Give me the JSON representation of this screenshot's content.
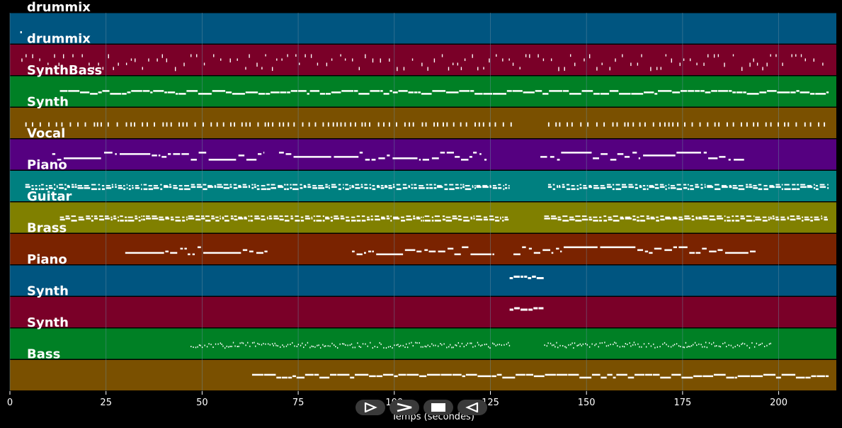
{
  "colors": {
    "background": "#000000",
    "grid": "#6a8ea3",
    "note": "#ffffff",
    "track_palette": [
      "#005580",
      "#7a0028",
      "#008025",
      "#7a5000",
      "#550080",
      "#008080",
      "#808000",
      "#7a2300"
    ]
  },
  "axis": {
    "xlabel": "Temps (secondes)",
    "xlim": [
      0,
      215
    ],
    "ticks": [
      0,
      25,
      50,
      75,
      100,
      125,
      150,
      175,
      200
    ]
  },
  "tracks": [
    {
      "name": "drummix",
      "color": "#005580",
      "style": "dot",
      "segments": []
    },
    {
      "name": "drummix",
      "color": "#7a0028",
      "style": "drum",
      "segments": [
        [
          3,
          213
        ]
      ]
    },
    {
      "name": "SynthBass",
      "color": "#008025",
      "style": "line",
      "segments": [
        [
          13,
          213
        ]
      ]
    },
    {
      "name": "Synth",
      "color": "#7a5000",
      "style": "ticks",
      "segments": [
        [
          4,
          131
        ],
        [
          140,
          213
        ]
      ]
    },
    {
      "name": "Vocal",
      "color": "#550080",
      "style": "melody",
      "segments": [
        [
          11,
          66
        ],
        [
          70,
          124
        ],
        [
          138,
          191
        ]
      ]
    },
    {
      "name": "Piano",
      "color": "#008080",
      "style": "dense",
      "segments": [
        [
          4,
          130
        ],
        [
          140,
          213
        ]
      ]
    },
    {
      "name": "Guitar",
      "color": "#808000",
      "style": "dense",
      "segments": [
        [
          13,
          130
        ],
        [
          139,
          213
        ]
      ]
    },
    {
      "name": "Brass",
      "color": "#7a2300",
      "style": "melody",
      "segments": [
        [
          30,
          67
        ],
        [
          89,
          126
        ],
        [
          131,
          194
        ]
      ]
    },
    {
      "name": "Piano",
      "color": "#005580",
      "style": "short",
      "segments": [
        [
          130,
          139
        ]
      ]
    },
    {
      "name": "Synth",
      "color": "#7a0028",
      "style": "short",
      "segments": [
        [
          130,
          139
        ]
      ]
    },
    {
      "name": "Synth",
      "color": "#008025",
      "style": "zigzag",
      "segments": [
        [
          47,
          130
        ],
        [
          139,
          198
        ]
      ]
    },
    {
      "name": "Bass",
      "color": "#7a5000",
      "style": "line",
      "segments": [
        [
          63,
          213
        ]
      ]
    }
  ],
  "transport": [
    {
      "name": "play",
      "icon": "play-icon"
    },
    {
      "name": "forward",
      "icon": "fast-forward-icon"
    },
    {
      "name": "stop",
      "icon": "stop-icon"
    },
    {
      "name": "rewind",
      "icon": "rewind-icon"
    }
  ]
}
